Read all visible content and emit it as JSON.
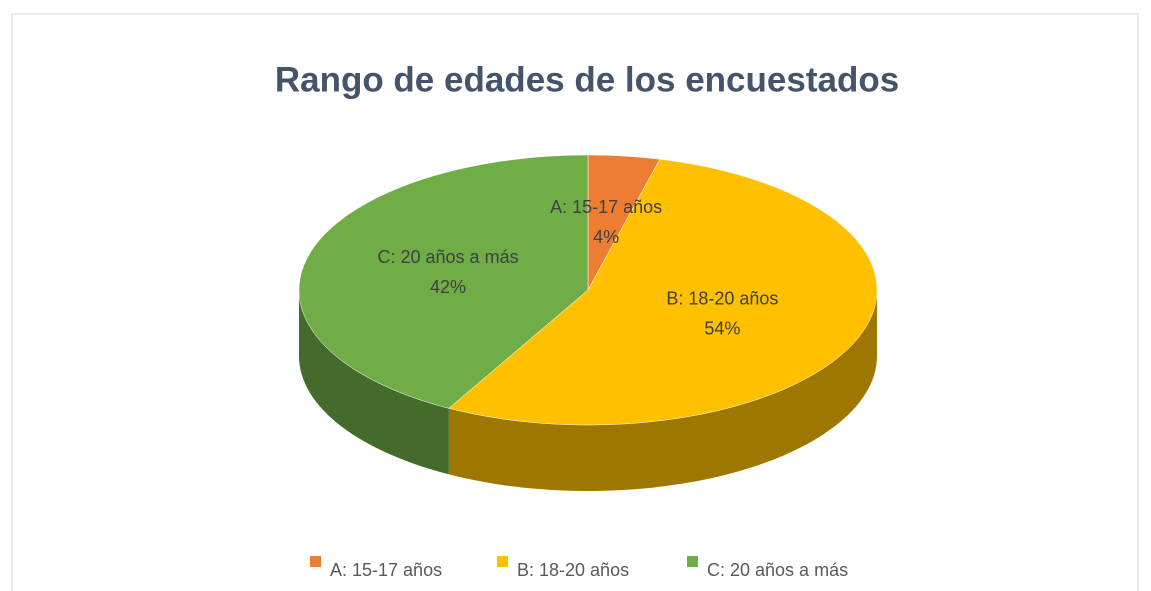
{
  "chart_data": {
    "type": "pie3d",
    "title": "Rango de edades de los encuestados",
    "categories": [
      "A: 15-17 años",
      "B: 18-20 años",
      "C:  20 años a más"
    ],
    "values": [
      4,
      54,
      42
    ],
    "value_labels": [
      "4%",
      "54%",
      "42%"
    ],
    "colors": [
      "#ed7d31",
      "#ffc000",
      "#70ad47"
    ],
    "legend": "bottom"
  }
}
